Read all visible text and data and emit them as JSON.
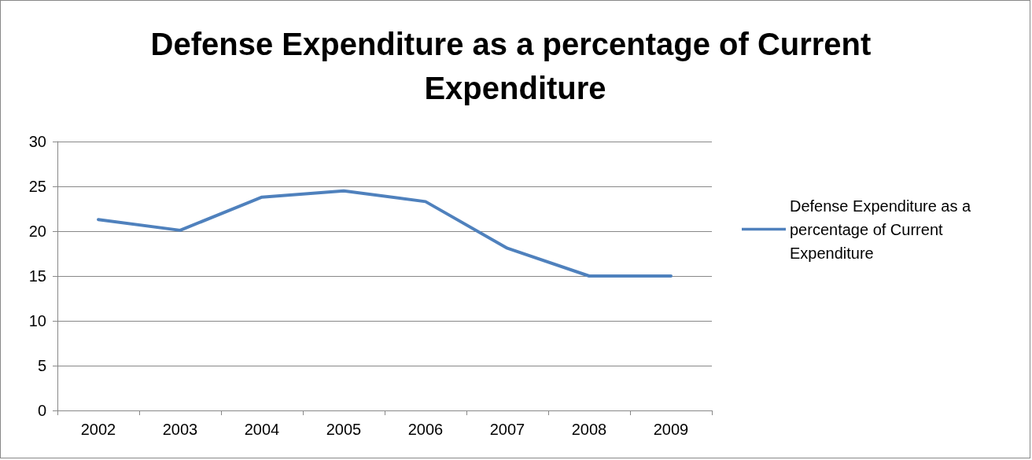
{
  "chart_data": {
    "type": "line",
    "title": "Defense Expenditure as a percentage of Current Expenditure",
    "categories": [
      "2002",
      "2003",
      "2004",
      "2005",
      "2006",
      "2007",
      "2008",
      "2009"
    ],
    "series": [
      {
        "name": "Defense Expenditure as a percentage of Current Expenditure",
        "color": "#4f81bd",
        "values": [
          21.3,
          20.1,
          23.8,
          24.5,
          23.3,
          18.1,
          15.0,
          15.0
        ]
      }
    ],
    "ylim": [
      0,
      30
    ],
    "yticks": [
      0,
      5,
      10,
      15,
      20,
      25,
      30
    ],
    "grid": "y",
    "legend": "right",
    "marker": "none",
    "line_style": "solid"
  }
}
